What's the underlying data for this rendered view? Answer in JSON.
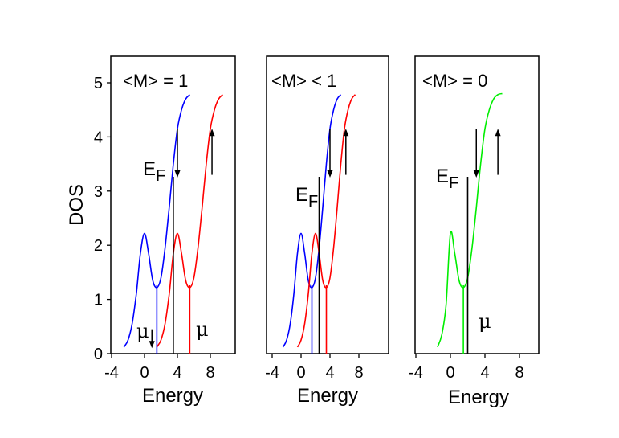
{
  "chart_data": [
    {
      "type": "line",
      "panel_label": "<M> = 1",
      "xlabel": "Energy",
      "ylabel": "DOS",
      "xlim": [
        -4,
        10
      ],
      "ylim": [
        0,
        5.5
      ],
      "x_ticks": [
        "-4",
        "0",
        "4",
        "8"
      ],
      "y_ticks": [
        "0",
        "1",
        "2",
        "3",
        "4",
        "5"
      ],
      "fermi_label": "E",
      "fermi_subscript": "F",
      "mu_label": "μ",
      "fermi_energy": 1.7,
      "series": [
        {
          "color": "#0000ff",
          "x": [
            -2.5,
            -2,
            -1.5,
            -1,
            -0.5,
            0,
            0.5,
            1,
            1.5,
            2,
            2.5,
            3,
            3.5,
            4,
            4.5,
            5,
            5.5
          ],
          "y": [
            0.12,
            0.25,
            0.55,
            1.1,
            1.85,
            2.22,
            1.85,
            1.35,
            1.22,
            1.4,
            1.95,
            2.7,
            3.5,
            4.15,
            4.5,
            4.7,
            4.78
          ]
        },
        {
          "color": "#ff0000",
          "x": [
            1.5,
            2,
            2.5,
            3,
            3.5,
            4,
            4.5,
            5,
            5.5,
            6,
            6.5,
            7,
            7.5,
            8,
            8.5,
            9,
            9.5
          ],
          "y": [
            0.12,
            0.25,
            0.55,
            1.1,
            1.85,
            2.22,
            1.85,
            1.35,
            1.22,
            1.4,
            1.95,
            2.7,
            3.5,
            4.15,
            4.5,
            4.7,
            4.78
          ]
        }
      ],
      "markers": [
        {
          "x": 1.5,
          "color": "#0000ff"
        },
        {
          "x": 5.5,
          "color": "#ff0000"
        },
        {
          "x": 3.5,
          "color": "#000000"
        }
      ],
      "arrows": [
        {
          "x": 4.0,
          "from": 4.15,
          "to": 3.25
        },
        {
          "x": 8.2,
          "from": 3.3,
          "to": 4.15
        },
        {
          "x": 0.9,
          "from": 0.45,
          "to": 0.1
        }
      ]
    },
    {
      "type": "line",
      "panel_label": "<M> < 1",
      "xlabel": "Energy",
      "xlim": [
        -4,
        10
      ],
      "ylim": [
        0,
        5.5
      ],
      "x_ticks": [
        "-4",
        "0",
        "4",
        "8"
      ],
      "fermi_label": "E",
      "fermi_subscript": "F",
      "series": [
        {
          "color": "#0000ff",
          "x": [
            -2.5,
            -2,
            -1.5,
            -1,
            -0.5,
            0,
            0.5,
            1,
            1.5,
            2,
            2.5,
            3,
            3.5,
            4,
            4.5,
            5,
            5.5
          ],
          "y": [
            0.12,
            0.25,
            0.55,
            1.1,
            1.85,
            2.22,
            1.85,
            1.35,
            1.22,
            1.4,
            1.95,
            2.7,
            3.5,
            4.15,
            4.5,
            4.7,
            4.78
          ]
        },
        {
          "color": "#ff0000",
          "x": [
            -0.5,
            0,
            0.5,
            1,
            1.5,
            2,
            2.5,
            3,
            3.5,
            4,
            4.5,
            5,
            5.5,
            6,
            6.5,
            7,
            7.5
          ],
          "y": [
            0.12,
            0.25,
            0.55,
            1.1,
            1.85,
            2.22,
            1.85,
            1.35,
            1.22,
            1.4,
            1.95,
            2.7,
            3.5,
            4.15,
            4.5,
            4.7,
            4.78
          ]
        }
      ],
      "markers": [
        {
          "x": 1.5,
          "color": "#0000ff"
        },
        {
          "x": 3.5,
          "color": "#ff0000"
        },
        {
          "x": 2.5,
          "color": "#000000"
        }
      ],
      "arrows": [
        {
          "x": 4.0,
          "from": 4.15,
          "to": 3.25
        },
        {
          "x": 6.2,
          "from": 3.3,
          "to": 4.15
        }
      ]
    },
    {
      "type": "line",
      "panel_label": "<M> = 0",
      "xlabel": "Energy",
      "xlim": [
        -4,
        10
      ],
      "ylim": [
        0,
        5.5
      ],
      "x_ticks": [
        "-4",
        "0",
        "4",
        "8"
      ],
      "fermi_label": "E",
      "fermi_subscript": "F",
      "mu_label": "μ",
      "series": [
        {
          "color": "#00ee00",
          "x": [
            -1.5,
            -1,
            -0.5,
            0,
            0.5,
            1,
            1.5,
            2,
            2.5,
            3,
            3.5,
            4,
            4.5,
            5,
            5.5,
            6
          ],
          "y": [
            0.12,
            0.35,
            0.9,
            2.22,
            1.85,
            1.35,
            1.22,
            1.4,
            1.95,
            2.7,
            3.5,
            4.15,
            4.5,
            4.7,
            4.78,
            4.8
          ]
        }
      ],
      "markers": [
        {
          "x": 1.5,
          "color": "#00ee00"
        },
        {
          "x": 2.0,
          "color": "#000000"
        }
      ],
      "arrows": [
        {
          "x": 3.0,
          "from": 4.15,
          "to": 3.25
        },
        {
          "x": 5.5,
          "from": 3.3,
          "to": 4.15
        }
      ]
    }
  ]
}
